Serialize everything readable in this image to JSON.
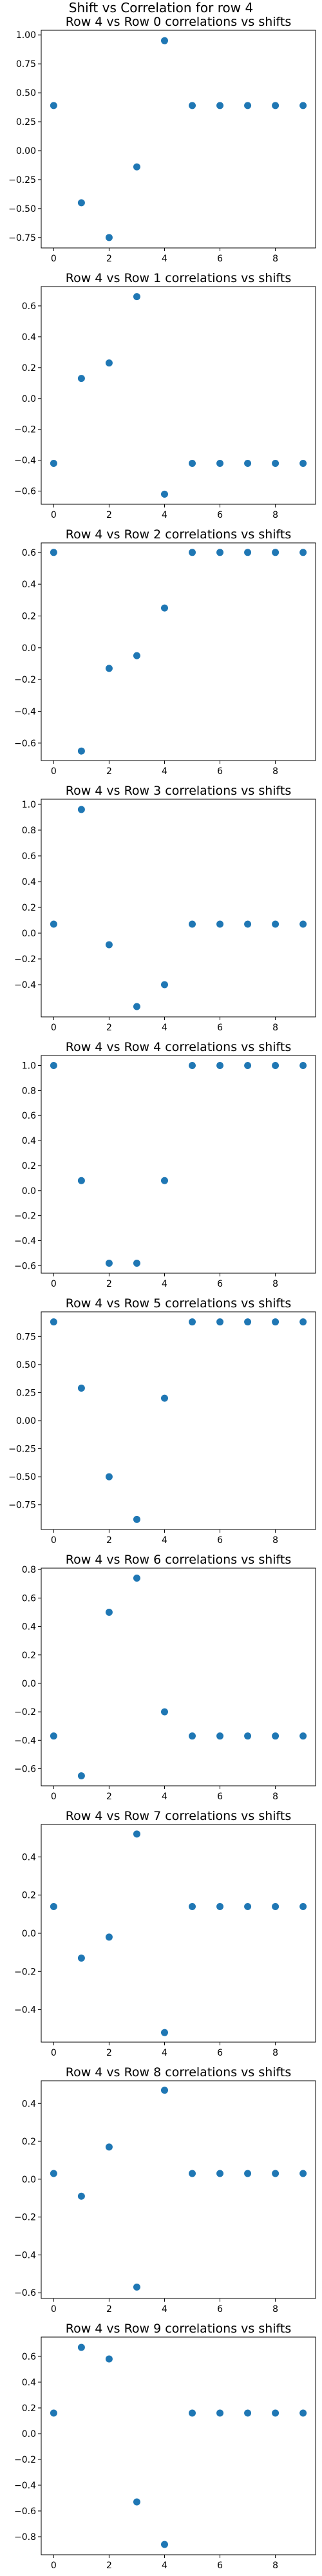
{
  "figure": {
    "suptitle": "Shift vs Correlation for row 4",
    "marker_color": "#1f77b4"
  },
  "chart_data": [
    {
      "type": "scatter",
      "title": "Row 4 vs Row 0 correlations vs shifts",
      "x": [
        0,
        1,
        2,
        3,
        4,
        5,
        6,
        7,
        8,
        9
      ],
      "y": [
        0.39,
        -0.45,
        -0.75,
        -0.14,
        0.95,
        0.39,
        0.39,
        0.39,
        0.39,
        0.39
      ],
      "xlim": [
        -0.45,
        9.45
      ],
      "ylim": [
        -0.84,
        1.04
      ],
      "xticks": [
        0,
        2,
        4,
        6,
        8
      ],
      "yticks": [
        -0.75,
        -0.5,
        -0.25,
        0.0,
        0.25,
        0.5,
        0.75,
        1.0
      ],
      "ytick_labels": [
        "−0.75",
        "−0.50",
        "−0.25",
        "0.00",
        "0.25",
        "0.50",
        "0.75",
        "1.00"
      ]
    },
    {
      "type": "scatter",
      "title": "Row 4 vs Row 1 correlations vs shifts",
      "x": [
        0,
        1,
        2,
        3,
        4,
        5,
        6,
        7,
        8,
        9
      ],
      "y": [
        -0.42,
        0.13,
        0.23,
        0.66,
        -0.62,
        -0.42,
        -0.42,
        -0.42,
        -0.42,
        -0.42
      ],
      "xlim": [
        -0.45,
        9.45
      ],
      "ylim": [
        -0.685,
        0.725
      ],
      "xticks": [
        0,
        2,
        4,
        6,
        8
      ],
      "yticks": [
        -0.6,
        -0.4,
        -0.2,
        0.0,
        0.2,
        0.4,
        0.6
      ],
      "ytick_labels": [
        "−0.6",
        "−0.4",
        "−0.2",
        "0.0",
        "0.2",
        "0.4",
        "0.6"
      ]
    },
    {
      "type": "scatter",
      "title": "Row 4 vs Row 2 correlations vs shifts",
      "x": [
        0,
        1,
        2,
        3,
        4,
        5,
        6,
        7,
        8,
        9
      ],
      "y": [
        0.6,
        -0.65,
        -0.13,
        -0.05,
        0.25,
        0.6,
        0.6,
        0.6,
        0.6,
        0.6
      ],
      "xlim": [
        -0.45,
        9.45
      ],
      "ylim": [
        -0.71,
        0.66
      ],
      "xticks": [
        0,
        2,
        4,
        6,
        8
      ],
      "yticks": [
        -0.6,
        -0.4,
        -0.2,
        0.0,
        0.2,
        0.4,
        0.6
      ],
      "ytick_labels": [
        "−0.6",
        "−0.4",
        "−0.2",
        "0.0",
        "0.2",
        "0.4",
        "0.6"
      ]
    },
    {
      "type": "scatter",
      "title": "Row 4 vs Row 3 correlations vs shifts",
      "x": [
        0,
        1,
        2,
        3,
        4,
        5,
        6,
        7,
        8,
        9
      ],
      "y": [
        0.07,
        0.96,
        -0.09,
        -0.57,
        -0.4,
        0.07,
        0.07,
        0.07,
        0.07,
        0.07
      ],
      "xlim": [
        -0.45,
        9.45
      ],
      "ylim": [
        -0.65,
        1.04
      ],
      "xticks": [
        0,
        2,
        4,
        6,
        8
      ],
      "yticks": [
        -0.4,
        -0.2,
        0.0,
        0.2,
        0.4,
        0.6,
        0.8,
        1.0
      ],
      "ytick_labels": [
        "−0.4",
        "−0.2",
        "0.0",
        "0.2",
        "0.4",
        "0.6",
        "0.8",
        "1.0"
      ]
    },
    {
      "type": "scatter",
      "title": "Row 4 vs Row 4 correlations vs shifts",
      "x": [
        0,
        1,
        2,
        3,
        4,
        5,
        6,
        7,
        8,
        9
      ],
      "y": [
        1.0,
        0.08,
        -0.58,
        -0.58,
        0.08,
        1.0,
        1.0,
        1.0,
        1.0,
        1.0
      ],
      "xlim": [
        -0.45,
        9.45
      ],
      "ylim": [
        -0.66,
        1.08
      ],
      "xticks": [
        0,
        2,
        4,
        6,
        8
      ],
      "yticks": [
        -0.6,
        -0.4,
        -0.2,
        0.0,
        0.2,
        0.4,
        0.6,
        0.8,
        1.0
      ],
      "ytick_labels": [
        "−0.6",
        "−0.4",
        "−0.2",
        "0.0",
        "0.2",
        "0.4",
        "0.6",
        "0.8",
        "1.0"
      ]
    },
    {
      "type": "scatter",
      "title": "Row 4 vs Row 5 correlations vs shifts",
      "x": [
        0,
        1,
        2,
        3,
        4,
        5,
        6,
        7,
        8,
        9
      ],
      "y": [
        0.88,
        0.29,
        -0.5,
        -0.88,
        0.2,
        0.88,
        0.88,
        0.88,
        0.88,
        0.88
      ],
      "xlim": [
        -0.45,
        9.45
      ],
      "ylim": [
        -0.97,
        0.97
      ],
      "xticks": [
        0,
        2,
        4,
        6,
        8
      ],
      "yticks": [
        -0.75,
        -0.5,
        -0.25,
        0.0,
        0.25,
        0.5,
        0.75
      ],
      "ytick_labels": [
        "−0.75",
        "−0.50",
        "−0.25",
        "0.00",
        "0.25",
        "0.50",
        "0.75"
      ]
    },
    {
      "type": "scatter",
      "title": "Row 4 vs Row 6 correlations vs shifts",
      "x": [
        0,
        1,
        2,
        3,
        4,
        5,
        6,
        7,
        8,
        9
      ],
      "y": [
        -0.37,
        -0.65,
        0.5,
        0.74,
        -0.2,
        -0.37,
        -0.37,
        -0.37,
        -0.37,
        -0.37
      ],
      "xlim": [
        -0.45,
        9.45
      ],
      "ylim": [
        -0.72,
        0.81
      ],
      "xticks": [
        0,
        2,
        4,
        6,
        8
      ],
      "yticks": [
        -0.6,
        -0.4,
        -0.2,
        0.0,
        0.2,
        0.4,
        0.6,
        0.8
      ],
      "ytick_labels": [
        "−0.6",
        "−0.4",
        "−0.2",
        "0.0",
        "0.2",
        "0.4",
        "0.6",
        "0.8"
      ]
    },
    {
      "type": "scatter",
      "title": "Row 4 vs Row 7 correlations vs shifts",
      "x": [
        0,
        1,
        2,
        3,
        4,
        5,
        6,
        7,
        8,
        9
      ],
      "y": [
        0.14,
        -0.13,
        -0.02,
        0.52,
        -0.52,
        0.14,
        0.14,
        0.14,
        0.14,
        0.14
      ],
      "xlim": [
        -0.45,
        9.45
      ],
      "ylim": [
        -0.57,
        0.57
      ],
      "xticks": [
        0,
        2,
        4,
        6,
        8
      ],
      "yticks": [
        -0.4,
        -0.2,
        0.0,
        0.2,
        0.4
      ],
      "ytick_labels": [
        "−0.4",
        "−0.2",
        "0.0",
        "0.2",
        "0.4"
      ]
    },
    {
      "type": "scatter",
      "title": "Row 4 vs Row 8 correlations vs shifts",
      "x": [
        0,
        1,
        2,
        3,
        4,
        5,
        6,
        7,
        8,
        9
      ],
      "y": [
        0.03,
        -0.09,
        0.17,
        -0.57,
        0.47,
        0.03,
        0.03,
        0.03,
        0.03,
        0.03
      ],
      "xlim": [
        -0.45,
        9.45
      ],
      "ylim": [
        -0.63,
        0.52
      ],
      "xticks": [
        0,
        2,
        4,
        6,
        8
      ],
      "yticks": [
        -0.6,
        -0.4,
        -0.2,
        0.0,
        0.2,
        0.4
      ],
      "ytick_labels": [
        "−0.6",
        "−0.4",
        "−0.2",
        "0.0",
        "0.2",
        "0.4"
      ]
    },
    {
      "type": "scatter",
      "title": "Row 4 vs Row 9 correlations vs shifts",
      "x": [
        0,
        1,
        2,
        3,
        4,
        5,
        6,
        7,
        8,
        9
      ],
      "y": [
        0.16,
        0.67,
        0.58,
        -0.53,
        -0.86,
        0.16,
        0.16,
        0.16,
        0.16,
        0.16
      ],
      "xlim": [
        -0.45,
        9.45
      ],
      "ylim": [
        -0.94,
        0.75
      ],
      "xticks": [
        0,
        2,
        4,
        6,
        8
      ],
      "yticks": [
        -0.8,
        -0.6,
        -0.4,
        -0.2,
        0.0,
        0.2,
        0.4,
        0.6
      ],
      "ytick_labels": [
        "−0.8",
        "−0.6",
        "−0.4",
        "−0.2",
        "0.0",
        "0.2",
        "0.4",
        "0.6"
      ]
    }
  ]
}
